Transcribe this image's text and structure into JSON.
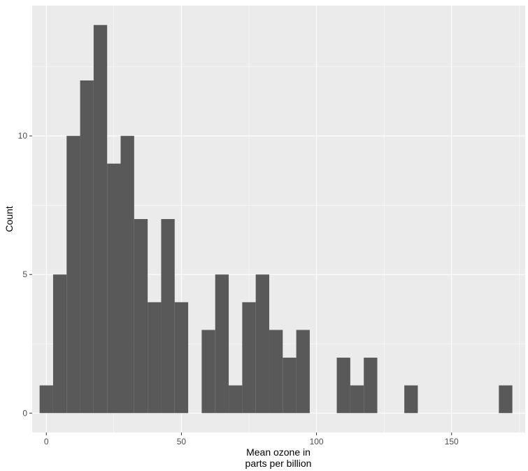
{
  "chart_data": {
    "type": "bar",
    "title": "",
    "xlabel_lines": [
      "Mean ozone in",
      "parts per billion"
    ],
    "ylabel": "Count",
    "bin_width": 5,
    "bins": [
      {
        "center": 0,
        "count": 1
      },
      {
        "center": 5,
        "count": 5
      },
      {
        "center": 10,
        "count": 10
      },
      {
        "center": 15,
        "count": 12
      },
      {
        "center": 20,
        "count": 14
      },
      {
        "center": 25,
        "count": 9
      },
      {
        "center": 30,
        "count": 10
      },
      {
        "center": 35,
        "count": 7
      },
      {
        "center": 40,
        "count": 4
      },
      {
        "center": 45,
        "count": 7
      },
      {
        "center": 50,
        "count": 4
      },
      {
        "center": 55,
        "count": 0
      },
      {
        "center": 60,
        "count": 3
      },
      {
        "center": 65,
        "count": 5
      },
      {
        "center": 70,
        "count": 1
      },
      {
        "center": 75,
        "count": 4
      },
      {
        "center": 80,
        "count": 5
      },
      {
        "center": 85,
        "count": 3
      },
      {
        "center": 90,
        "count": 2
      },
      {
        "center": 95,
        "count": 3
      },
      {
        "center": 100,
        "count": 0
      },
      {
        "center": 105,
        "count": 0
      },
      {
        "center": 110,
        "count": 2
      },
      {
        "center": 115,
        "count": 1
      },
      {
        "center": 120,
        "count": 2
      },
      {
        "center": 125,
        "count": 0
      },
      {
        "center": 130,
        "count": 0
      },
      {
        "center": 135,
        "count": 1
      },
      {
        "center": 140,
        "count": 0
      },
      {
        "center": 145,
        "count": 0
      },
      {
        "center": 150,
        "count": 0
      },
      {
        "center": 155,
        "count": 0
      },
      {
        "center": 160,
        "count": 0
      },
      {
        "center": 165,
        "count": 0
      },
      {
        "center": 170,
        "count": 1
      }
    ],
    "xlim": [
      -5.25,
      177.25
    ],
    "ylim": [
      -0.7,
      14.7
    ],
    "x_ticks": [
      0,
      50,
      100,
      150
    ],
    "y_ticks": [
      0,
      5,
      10
    ],
    "grid": true,
    "colors": {
      "panel_background": "#ebebeb",
      "grid_major": "#ffffff",
      "bar_fill": "#595959",
      "tick_mark": "#333333"
    }
  }
}
